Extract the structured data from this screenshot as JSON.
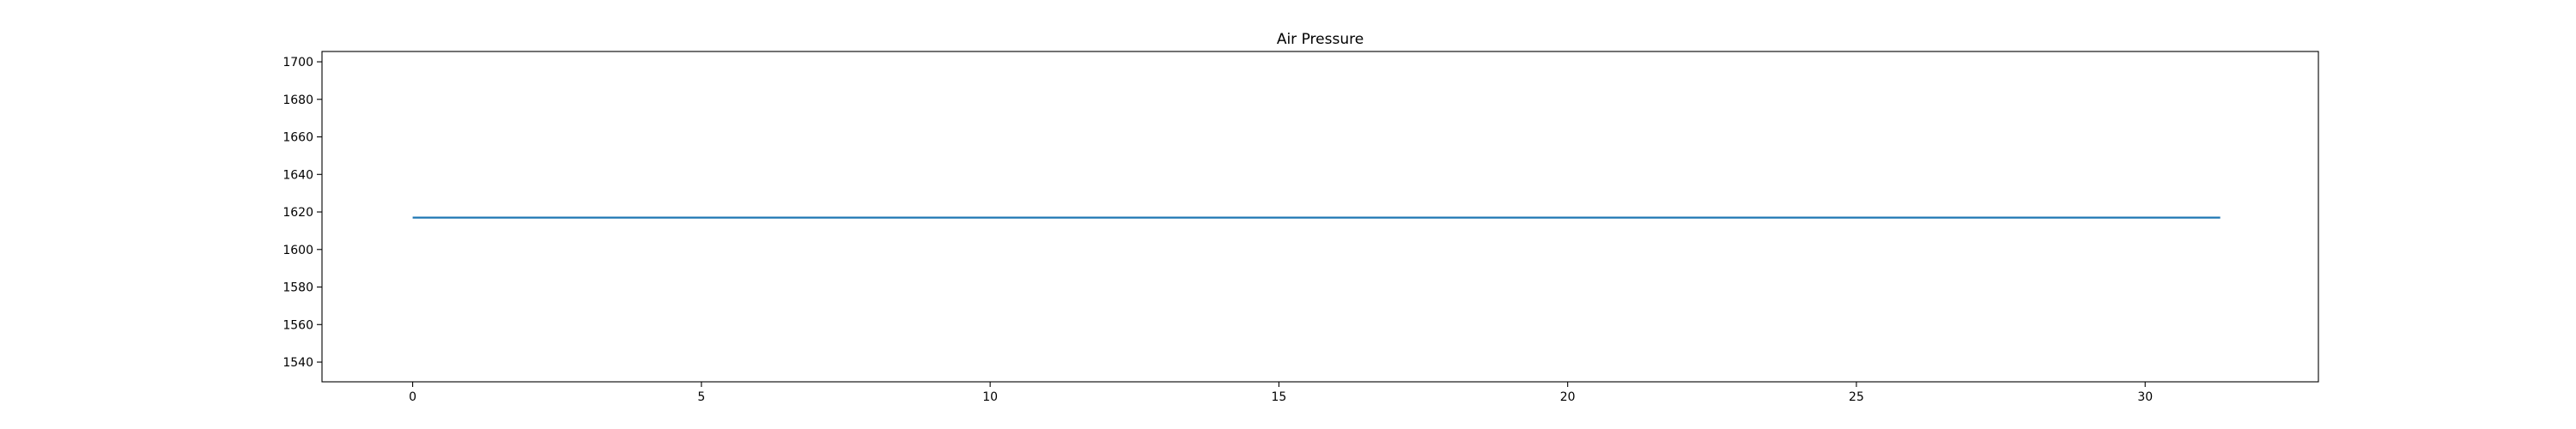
{
  "chart_data": {
    "type": "line",
    "title": "Air Pressure",
    "xlabel": "",
    "ylabel": "",
    "xlim": [
      -1.57,
      33.0
    ],
    "ylim": [
      1529.5,
      1705.5
    ],
    "x_ticks": [
      0,
      5,
      10,
      15,
      20,
      25,
      30
    ],
    "y_ticks": [
      1540,
      1560,
      1580,
      1600,
      1620,
      1640,
      1660,
      1680,
      1700
    ],
    "grid": false,
    "legend": "none",
    "series": [
      {
        "color": "#1f77b4",
        "x": [
          0,
          31.3
        ],
        "y": [
          1617,
          1617
        ]
      }
    ]
  }
}
